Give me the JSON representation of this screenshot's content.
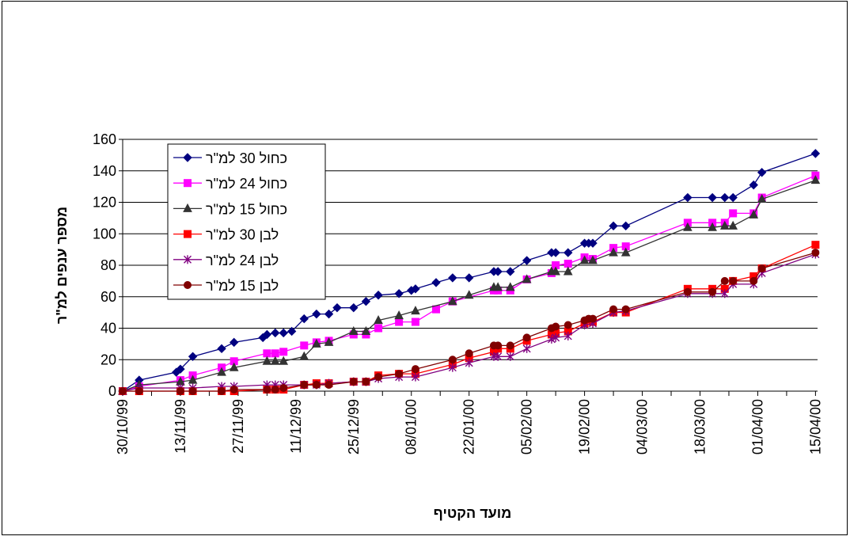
{
  "chart_data": {
    "type": "line",
    "title": "",
    "xlabel": "מועד הקטיף",
    "ylabel": "מספר ענפים למ\"ר",
    "ylim": [
      0,
      160
    ],
    "yticks": [
      0,
      20,
      40,
      60,
      80,
      100,
      120,
      140,
      160
    ],
    "grid": "horizontal",
    "legend_position": "upper-left",
    "xticks": [
      "30/10/99",
      "13/11/99",
      "27/11/99",
      "11/12/99",
      "25/12/99",
      "08/01/00",
      "22/01/00",
      "05/02/00",
      "19/02/00",
      "04/03/00",
      "18/03/00",
      "01/04/00",
      "15/04/00"
    ],
    "series": [
      {
        "name": "כחול 30 למ\"ר",
        "color": "#000080",
        "marker": "diamond",
        "x": [
          "1999-10-30",
          "1999-11-03",
          "1999-11-12",
          "1999-11-13",
          "1999-11-16",
          "1999-11-23",
          "1999-11-26",
          "1999-12-03",
          "1999-12-04",
          "1999-12-06",
          "1999-12-08",
          "1999-12-10",
          "1999-12-13",
          "1999-12-16",
          "1999-12-19",
          "1999-12-21",
          "1999-12-25",
          "1999-12-28",
          "1999-12-31",
          "2000-01-05",
          "2000-01-08",
          "2000-01-09",
          "2000-01-14",
          "2000-01-18",
          "2000-01-22",
          "2000-01-28",
          "2000-01-29",
          "2000-02-01",
          "2000-02-05",
          "2000-02-11",
          "2000-02-12",
          "2000-02-15",
          "2000-02-19",
          "2000-02-20",
          "2000-02-21",
          "2000-02-26",
          "2000-02-29",
          "2000-03-15",
          "2000-03-21",
          "2000-03-24",
          "2000-03-26",
          "2000-03-31",
          "2000-04-02",
          "2000-04-15"
        ],
        "y": [
          0,
          7,
          12,
          14,
          22,
          27,
          31,
          34,
          36,
          37,
          37,
          38,
          46,
          49,
          49,
          53,
          53,
          57,
          61,
          62,
          64,
          65,
          69,
          72,
          72,
          76,
          76,
          76,
          83,
          88,
          88,
          88,
          94,
          94,
          94,
          105,
          105,
          123,
          123,
          123,
          123,
          131,
          139,
          151
        ]
      },
      {
        "name": "כחול 24 למ\"ר",
        "color": "#ff00ff",
        "marker": "square",
        "x": [
          "1999-10-30",
          "1999-11-03",
          "1999-11-13",
          "1999-11-16",
          "1999-11-23",
          "1999-11-26",
          "1999-12-04",
          "1999-12-06",
          "1999-12-08",
          "1999-12-13",
          "1999-12-16",
          "1999-12-19",
          "1999-12-25",
          "1999-12-28",
          "1999-12-31",
          "2000-01-05",
          "2000-01-09",
          "2000-01-14",
          "2000-01-18",
          "2000-01-28",
          "2000-01-29",
          "2000-02-01",
          "2000-02-05",
          "2000-02-11",
          "2000-02-12",
          "2000-02-15",
          "2000-02-19",
          "2000-02-21",
          "2000-02-26",
          "2000-02-29",
          "2000-03-15",
          "2000-03-21",
          "2000-03-24",
          "2000-03-26",
          "2000-03-31",
          "2000-04-02",
          "2000-04-15"
        ],
        "y": [
          0,
          3,
          7,
          10,
          15,
          19,
          24,
          24,
          25,
          29,
          31,
          32,
          36,
          36,
          40,
          44,
          44,
          52,
          57,
          64,
          64,
          64,
          71,
          75,
          80,
          81,
          85,
          84,
          91,
          92,
          107,
          107,
          107,
          113,
          113,
          123,
          137
        ]
      },
      {
        "name": "כחול 15 למ\"ר",
        "color": "#333333",
        "marker": "triangle",
        "x": [
          "1999-10-30",
          "1999-11-03",
          "1999-11-13",
          "1999-11-16",
          "1999-11-23",
          "1999-11-26",
          "1999-12-04",
          "1999-12-06",
          "1999-12-08",
          "1999-12-13",
          "1999-12-16",
          "1999-12-19",
          "1999-12-25",
          "1999-12-28",
          "1999-12-31",
          "2000-01-05",
          "2000-01-09",
          "2000-01-18",
          "2000-01-22",
          "2000-01-28",
          "2000-01-29",
          "2000-02-01",
          "2000-02-05",
          "2000-02-11",
          "2000-02-12",
          "2000-02-15",
          "2000-02-19",
          "2000-02-21",
          "2000-02-26",
          "2000-02-29",
          "2000-03-15",
          "2000-03-21",
          "2000-03-24",
          "2000-03-26",
          "2000-03-31",
          "2000-04-02",
          "2000-04-15"
        ],
        "y": [
          0,
          4,
          6,
          7,
          12,
          15,
          19,
          19,
          19,
          22,
          30,
          31,
          38,
          38,
          45,
          48,
          51,
          57,
          61,
          66,
          66,
          66,
          71,
          76,
          76,
          76,
          83,
          83,
          88,
          88,
          104,
          104,
          105,
          105,
          112,
          122,
          134
        ]
      },
      {
        "name": "לבן 30 למ\"ר",
        "color": "#ff0000",
        "marker": "square",
        "x": [
          "1999-10-30",
          "1999-11-03",
          "1999-11-13",
          "1999-11-16",
          "1999-11-23",
          "1999-11-26",
          "1999-12-04",
          "1999-12-06",
          "1999-12-08",
          "1999-12-13",
          "1999-12-16",
          "1999-12-19",
          "1999-12-25",
          "1999-12-28",
          "1999-12-31",
          "2000-01-05",
          "2000-01-09",
          "2000-01-18",
          "2000-01-22",
          "2000-01-28",
          "2000-01-29",
          "2000-02-01",
          "2000-02-05",
          "2000-02-11",
          "2000-02-12",
          "2000-02-15",
          "2000-02-19",
          "2000-02-21",
          "2000-02-26",
          "2000-02-29",
          "2000-03-15",
          "2000-03-21",
          "2000-03-24",
          "2000-03-26",
          "2000-03-31",
          "2000-04-02",
          "2000-04-15"
        ],
        "y": [
          0,
          0,
          0,
          0,
          0,
          0,
          1,
          1,
          1,
          4,
          5,
          5,
          6,
          6,
          10,
          11,
          11,
          17,
          21,
          25,
          27,
          27,
          32,
          36,
          37,
          38,
          43,
          44,
          50,
          50,
          65,
          65,
          65,
          70,
          73,
          78,
          93
        ]
      },
      {
        "name": "לבן 24 למ\"ר",
        "color": "#800080",
        "marker": "asterisk",
        "x": [
          "1999-10-30",
          "1999-11-03",
          "1999-11-13",
          "1999-11-16",
          "1999-11-23",
          "1999-11-26",
          "1999-12-04",
          "1999-12-06",
          "1999-12-08",
          "1999-12-13",
          "1999-12-16",
          "1999-12-19",
          "1999-12-25",
          "1999-12-28",
          "1999-12-31",
          "2000-01-05",
          "2000-01-09",
          "2000-01-18",
          "2000-01-22",
          "2000-01-28",
          "2000-01-29",
          "2000-02-01",
          "2000-02-05",
          "2000-02-11",
          "2000-02-12",
          "2000-02-15",
          "2000-02-19",
          "2000-02-21",
          "2000-02-26",
          "2000-02-29",
          "2000-03-15",
          "2000-03-21",
          "2000-03-24",
          "2000-03-26",
          "2000-03-31",
          "2000-04-02",
          "2000-04-15"
        ],
        "y": [
          0,
          2,
          2,
          2,
          3,
          3,
          4,
          4,
          4,
          4,
          4,
          5,
          6,
          6,
          8,
          9,
          9,
          15,
          18,
          22,
          22,
          22,
          27,
          33,
          34,
          35,
          42,
          43,
          50,
          51,
          62,
          62,
          62,
          68,
          68,
          75,
          87
        ]
      },
      {
        "name": "לבן 15 למ\"ר",
        "color": "#800000",
        "marker": "circle",
        "x": [
          "1999-10-30",
          "1999-11-03",
          "1999-11-13",
          "1999-11-16",
          "1999-11-23",
          "1999-11-26",
          "1999-12-04",
          "1999-12-06",
          "1999-12-08",
          "1999-12-13",
          "1999-12-16",
          "1999-12-19",
          "1999-12-25",
          "1999-12-28",
          "1999-12-31",
          "2000-01-05",
          "2000-01-09",
          "2000-01-18",
          "2000-01-22",
          "2000-01-28",
          "2000-01-29",
          "2000-02-01",
          "2000-02-05",
          "2000-02-11",
          "2000-02-12",
          "2000-02-15",
          "2000-02-19",
          "2000-02-20",
          "2000-02-21",
          "2000-02-26",
          "2000-02-29",
          "2000-03-15",
          "2000-03-21",
          "2000-03-24",
          "2000-03-26",
          "2000-03-31",
          "2000-04-02",
          "2000-04-15"
        ],
        "y": [
          0,
          0,
          0,
          0,
          0,
          1,
          1,
          1,
          2,
          4,
          4,
          4,
          6,
          6,
          9,
          11,
          14,
          20,
          24,
          29,
          29,
          29,
          34,
          40,
          41,
          42,
          45,
          46,
          46,
          52,
          52,
          63,
          63,
          70,
          70,
          70,
          78,
          88
        ]
      }
    ]
  }
}
